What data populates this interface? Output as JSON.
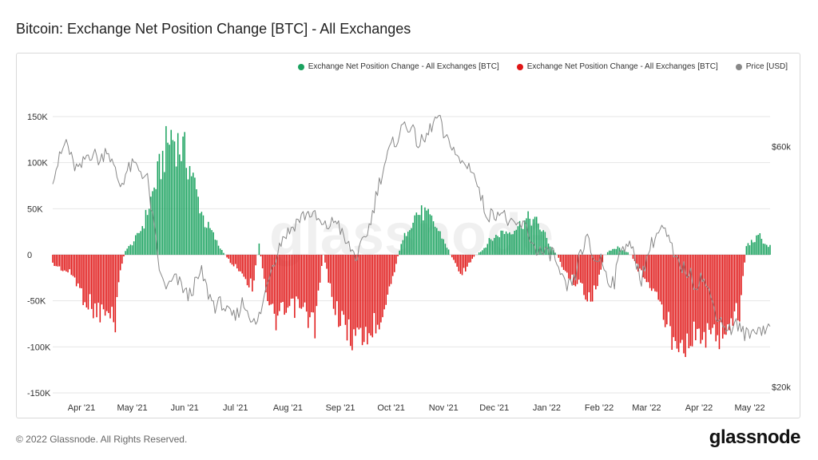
{
  "title": "Bitcoin: Exchange Net Position Change [BTC] - All Exchanges",
  "footer": "© 2022 Glassnode. All Rights Reserved.",
  "brand": "glassnode",
  "watermark": "glassnode",
  "colors": {
    "positive": "#1aa25f",
    "negative": "#e01515",
    "price": "#888888",
    "grid": "#e6e6e6"
  },
  "legend": [
    {
      "label": "Exchange Net Position Change - All Exchanges [BTC]",
      "color": "#1aa25f"
    },
    {
      "label": "Exchange Net Position Change - All Exchanges [BTC]",
      "color": "#e01515"
    },
    {
      "label": "Price [USD]",
      "color": "#888888"
    }
  ],
  "chart_data": {
    "type": "bar",
    "title": "Bitcoin: Exchange Net Position Change [BTC] - All Exchanges",
    "ylim": [
      -150000,
      150000
    ],
    "y_ticks": [
      150000,
      100000,
      50000,
      0,
      -50000,
      -100000,
      -150000
    ],
    "y_tick_labels": [
      "150K",
      "100K",
      "50K",
      "0",
      "-50K",
      "-100K",
      "-150K"
    ],
    "y2_tick_labels": [
      "$60k",
      "$20k"
    ],
    "y2_ticks": [
      60000,
      20000
    ],
    "y2lim": [
      19000,
      65000
    ],
    "x_range": [
      "2021-03-15",
      "2022-05-28"
    ],
    "x_tick_labels": [
      "Apr '21",
      "May '21",
      "Jun '21",
      "Jul '21",
      "Aug '21",
      "Sep '21",
      "Oct '21",
      "Nov '21",
      "Dec '21",
      "Jan '22",
      "Feb '22",
      "Mar '22",
      "Apr '22",
      "May '22"
    ],
    "x_ticks_day": [
      17,
      47,
      78,
      108,
      139,
      170,
      200,
      231,
      261,
      292,
      323,
      351,
      382,
      412
    ],
    "series": [
      {
        "name": "Exchange Net Position Change - All Exchanges [BTC]",
        "type": "bar",
        "anchors_day": [
          0,
          5,
          12,
          18,
          25,
          32,
          37,
          40,
          43,
          46,
          50,
          54,
          58,
          62,
          66,
          70,
          74,
          78,
          82,
          86,
          90,
          94,
          98,
          102,
          106,
          110,
          114,
          118,
          122,
          128,
          132,
          136,
          140,
          145,
          150,
          155,
          160,
          165,
          170,
          175,
          180,
          185,
          190,
          195,
          200,
          205,
          210,
          215,
          220,
          225,
          230,
          234,
          238,
          242,
          246,
          250,
          254,
          258,
          262,
          266,
          270,
          274,
          278,
          282,
          286,
          290,
          294,
          298,
          302,
          306,
          310,
          314,
          318,
          322,
          326,
          330,
          334,
          338,
          342,
          346,
          350,
          354,
          358,
          362,
          366,
          370,
          374,
          378,
          382,
          386,
          390,
          394,
          398,
          402,
          406,
          410,
          414,
          418,
          420,
          422,
          424
        ],
        "anchors_value": [
          -10000,
          -15000,
          -22000,
          -45000,
          -60000,
          -65000,
          -70000,
          -15000,
          5000,
          10000,
          20000,
          35000,
          60000,
          85000,
          110000,
          130000,
          120000,
          110000,
          90000,
          60000,
          35000,
          25000,
          10000,
          0,
          -10000,
          -15000,
          -25000,
          -35000,
          10000,
          -60000,
          -70000,
          -65000,
          -60000,
          -55000,
          -65000,
          -75000,
          0,
          -45000,
          -70000,
          -85000,
          -90000,
          -88000,
          -80000,
          -60000,
          -30000,
          5000,
          30000,
          45000,
          45000,
          35000,
          20000,
          5000,
          -10000,
          -20000,
          -10000,
          0,
          5000,
          15000,
          20000,
          25000,
          25000,
          30000,
          35000,
          40000,
          35000,
          25000,
          10000,
          0,
          -15000,
          -25000,
          -30000,
          -40000,
          -45000,
          -35000,
          0,
          5000,
          8000,
          5000,
          0,
          -15000,
          -25000,
          -35000,
          -50000,
          -70000,
          -85000,
          -90000,
          -92000,
          -90000,
          -85000,
          -88000,
          -90000,
          -85000,
          -80000,
          -70000,
          -60000,
          10000,
          15000,
          20000,
          15000,
          10000,
          10000
        ]
      },
      {
        "name": "Price [USD]",
        "type": "line",
        "axis": "right",
        "anchors_day": [
          0,
          4,
          8,
          12,
          16,
          20,
          24,
          28,
          32,
          36,
          40,
          44,
          48,
          52,
          56,
          60,
          64,
          68,
          72,
          76,
          80,
          84,
          88,
          92,
          96,
          100,
          104,
          108,
          112,
          116,
          120,
          124,
          128,
          132,
          136,
          140,
          144,
          148,
          152,
          156,
          160,
          164,
          168,
          172,
          176,
          180,
          184,
          188,
          192,
          196,
          200,
          204,
          208,
          212,
          216,
          220,
          224,
          228,
          232,
          236,
          240,
          244,
          248,
          252,
          256,
          260,
          264,
          268,
          272,
          276,
          280,
          284,
          288,
          292,
          296,
          300,
          304,
          308,
          312,
          316,
          320,
          324,
          328,
          332,
          336,
          340,
          344,
          348,
          352,
          356,
          360,
          364,
          368,
          372,
          376,
          380,
          384,
          388,
          392,
          396,
          400,
          404,
          408,
          412,
          416,
          420,
          424
        ],
        "anchors_value": [
          55000,
          58000,
          61000,
          57000,
          56000,
          58500,
          59000,
          57500,
          60000,
          56500,
          53500,
          56000,
          57000,
          56000,
          54500,
          46000,
          38000,
          36500,
          38000,
          37000,
          35000,
          37000,
          39000,
          35500,
          33500,
          34000,
          32000,
          31500,
          34000,
          32500,
          30000,
          33500,
          39000,
          42000,
          45000,
          46000,
          47500,
          48500,
          49000,
          48000,
          46500,
          47000,
          48000,
          44500,
          43000,
          41500,
          44500,
          47500,
          53000,
          57000,
          60000,
          61500,
          64000,
          63000,
          60500,
          61000,
          63500,
          65000,
          61000,
          60500,
          57500,
          57000,
          56500,
          52500,
          49000,
          48500,
          49500,
          48000,
          46500,
          47000,
          46500,
          43500,
          42500,
          42000,
          42500,
          38000,
          36500,
          37500,
          42500,
          44500,
          41000,
          41500,
          38000,
          37500,
          43500,
          44000,
          41500,
          38000,
          42500,
          45000,
          46500,
          44500,
          41000,
          40000,
          39000,
          37000,
          38500,
          35500,
          32500,
          30500,
          29500,
          30500,
          29000,
          28500,
          30000,
          29500,
          30000
        ]
      }
    ]
  }
}
